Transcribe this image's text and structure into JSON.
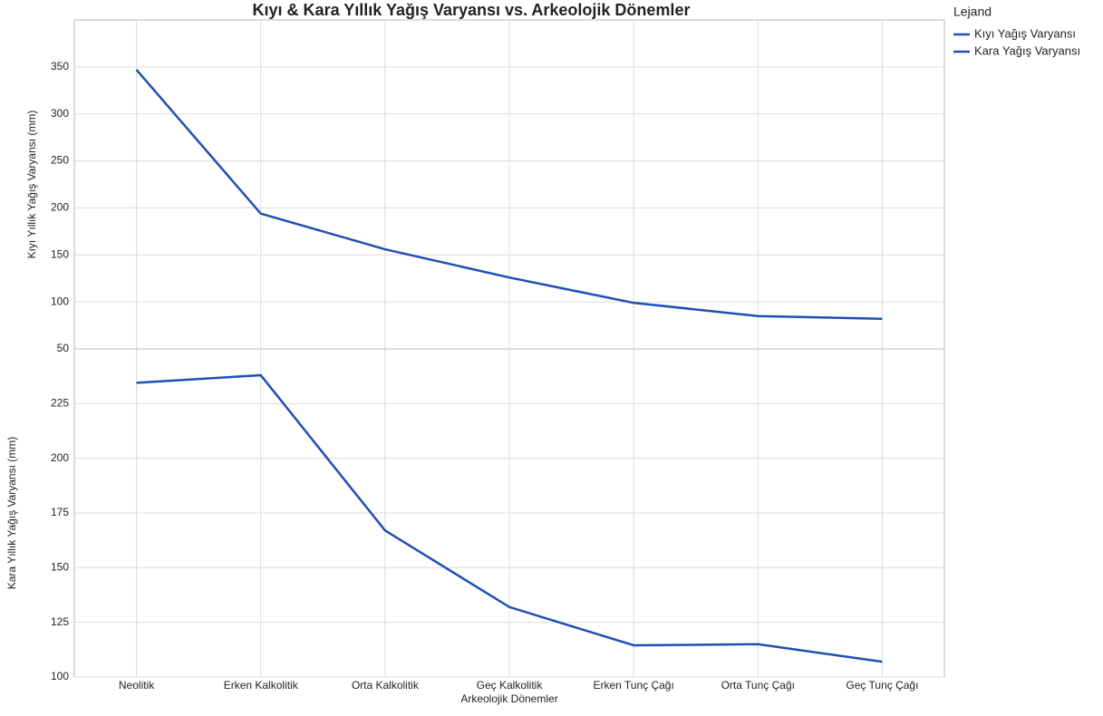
{
  "title": "Kıyı & Kara Yıllık Yağış Varyansı vs. Arkeolojik Dönemler",
  "legend": {
    "title": "Lejand",
    "position": "right"
  },
  "chart_data": [
    {
      "type": "line",
      "ylabel": "Kıyı Yıllık Yağış Varyansı (mm)",
      "ylim": [
        50,
        400
      ],
      "yticks": [
        50,
        100,
        150,
        200,
        250,
        300,
        350
      ],
      "grid": true,
      "series": [
        {
          "name": "Kıyı Yağış Varyansı",
          "color": "#1f4fb5",
          "values": [
            347,
            194,
            156,
            126,
            99,
            85,
            82
          ]
        }
      ]
    },
    {
      "type": "line",
      "ylabel": "Kara Yıllık Yağış Varyansı (mm)",
      "xlabel": "Arkeolojik Dönemler",
      "categories": [
        "Neolitik",
        "Erken Kalkolitik",
        "Orta Kalkolitik",
        "Geç Kalkolitik",
        "Erken Tunç Çağı",
        "Orta Tunç Çağı",
        "Geç Tunç Çağı"
      ],
      "ylim": [
        100,
        250
      ],
      "yticks": [
        100,
        125,
        150,
        175,
        200,
        225
      ],
      "grid": true,
      "series": [
        {
          "name": "Kara Yağış Varyansı",
          "color": "#1f4fb5",
          "values": [
            234.5,
            238,
            167,
            132,
            114.5,
            115,
            107
          ]
        }
      ]
    }
  ]
}
